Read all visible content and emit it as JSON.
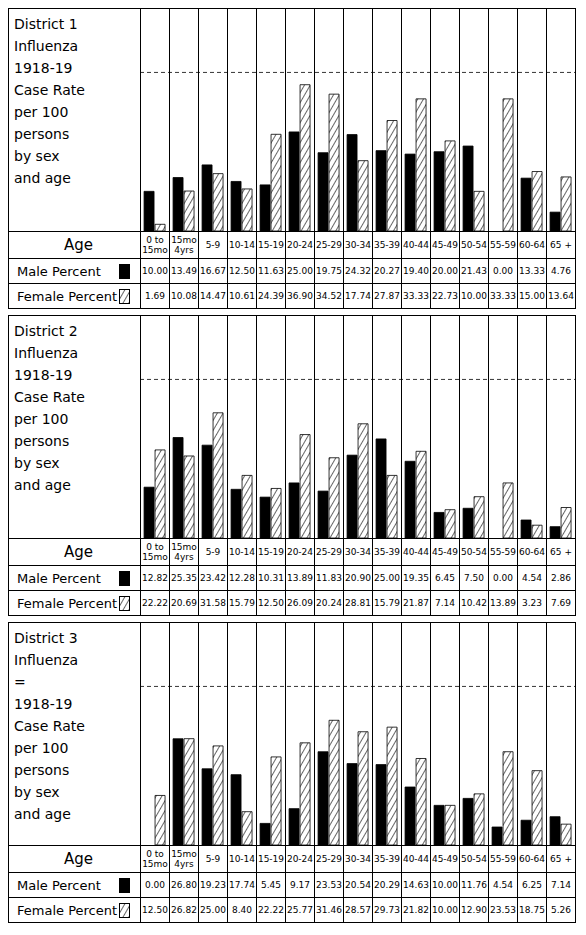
{
  "chart_data": [
    {
      "type": "bar",
      "title": "District 1\nInfluenza\n1918-19\nCase Rate\nper 100\npersons\nby sex\nand age",
      "x_label": "Age",
      "categories": [
        "0 to 15mo",
        "15mo 4yrs",
        "5-9",
        "10-14",
        "15-19",
        "20-24",
        "25-29",
        "30-34",
        "35-39",
        "40-44",
        "45-49",
        "50-54",
        "55-59",
        "60-64",
        "65 +"
      ],
      "series": [
        {
          "name": "Male Percent",
          "color": "#000000",
          "values": [
            10.0,
            13.49,
            16.67,
            12.5,
            11.63,
            25.0,
            19.75,
            24.32,
            20.27,
            19.4,
            20.0,
            21.43,
            0.0,
            13.33,
            4.76
          ],
          "value_labels": [
            "10.00",
            "13.49",
            "16.67",
            "12.50",
            "11.63",
            "25.00",
            "19.75",
            "24.32",
            "20.27",
            "19.40",
            "20.00",
            "21.43",
            "0.00",
            "13.33",
            "4.76"
          ]
        },
        {
          "name": "Female Percent",
          "color": "#000000",
          "line_style": "hatched",
          "values": [
            1.69,
            10.08,
            14.47,
            10.61,
            24.39,
            36.9,
            34.52,
            17.74,
            27.87,
            33.33,
            22.73,
            10.0,
            33.33,
            15.0,
            13.64
          ],
          "value_labels": [
            "1.69",
            "10.08",
            "14.47",
            "10.61",
            "24.39",
            "36.90",
            "34.52",
            "17.74",
            "27.87",
            "33.33",
            "22.73",
            "10.00",
            "33.33",
            "15.00",
            "13.64"
          ]
        }
      ],
      "ylim": [
        0,
        56
      ],
      "yticks": [
        40
      ],
      "grid": true,
      "tick_labels": false
    },
    {
      "type": "bar",
      "title": "District 2\nInfluenza\n1918-19\nCase Rate\nper 100\npersons\nby sex\nand age",
      "x_label": "Age",
      "categories": [
        "0 to 15mo",
        "15mo 4yrs",
        "5-9",
        "10-14",
        "15-19",
        "20-24",
        "25-29",
        "30-34",
        "35-39",
        "40-44",
        "45-49",
        "50-54",
        "55-59",
        "60-64",
        "65 +"
      ],
      "series": [
        {
          "name": "Male Percent",
          "color": "#000000",
          "values": [
            12.82,
            25.35,
            23.42,
            12.28,
            10.31,
            13.89,
            11.83,
            20.9,
            25.0,
            19.35,
            6.45,
            7.5,
            0.0,
            4.54,
            2.86
          ],
          "value_labels": [
            "12.82",
            "25.35",
            "23.42",
            "12.28",
            "10.31",
            "13.89",
            "11.83",
            "20.90",
            "25.00",
            "19.35",
            "6.45",
            "7.50",
            "0.00",
            "4.54",
            "2.86"
          ]
        },
        {
          "name": "Female Percent",
          "color": "#000000",
          "line_style": "hatched",
          "values": [
            22.22,
            20.69,
            31.58,
            15.79,
            12.5,
            26.09,
            20.24,
            28.81,
            15.79,
            21.87,
            7.14,
            10.42,
            13.89,
            3.23,
            7.69
          ],
          "value_labels": [
            "22.22",
            "20.69",
            "31.58",
            "15.79",
            "12.50",
            "26.09",
            "20.24",
            "28.81",
            "15.79",
            "21.87",
            "7.14",
            "10.42",
            "13.89",
            "3.23",
            "7.69"
          ]
        }
      ],
      "ylim": [
        0,
        56
      ],
      "yticks": [
        40
      ],
      "grid": true,
      "tick_labels": false
    },
    {
      "type": "bar",
      "title": "District 3\nInfluenza\n=\n1918-19\nCase Rate\nper 100\npersons\nby sex\nand age",
      "x_label": "Age",
      "categories": [
        "0 to 15mo",
        "15mo 4yrs",
        "5-9",
        "10-14",
        "15-19",
        "20-24",
        "25-29",
        "30-34",
        "35-39",
        "40-44",
        "45-49",
        "50-54",
        "55-59",
        "60-64",
        "65 +"
      ],
      "series": [
        {
          "name": "Male Percent",
          "color": "#000000",
          "values": [
            0.0,
            26.8,
            19.23,
            17.74,
            5.45,
            9.17,
            23.53,
            20.54,
            20.29,
            14.63,
            10.0,
            11.76,
            4.54,
            6.25,
            7.14
          ],
          "value_labels": [
            "0.00",
            "26.80",
            "19.23",
            "17.74",
            "5.45",
            "9.17",
            "23.53",
            "20.54",
            "20.29",
            "14.63",
            "10.00",
            "11.76",
            "4.54",
            "6.25",
            "7.14"
          ]
        },
        {
          "name": "Female Percent",
          "color": "#000000",
          "line_style": "hatched",
          "values": [
            12.5,
            26.82,
            25.0,
            8.4,
            22.22,
            25.77,
            31.46,
            28.57,
            29.73,
            21.82,
            10.0,
            12.9,
            23.53,
            18.75,
            5.26
          ],
          "value_labels": [
            "12.50",
            "26.82",
            "25.00",
            "8.40",
            "22.22",
            "25.77",
            "31.46",
            "28.57",
            "29.73",
            "21.82",
            "10.00",
            "12.90",
            "23.53",
            "18.75",
            "5.26"
          ]
        }
      ],
      "ylim": [
        0,
        56
      ],
      "yticks": [
        40
      ],
      "grid": true,
      "tick_labels": false
    }
  ]
}
